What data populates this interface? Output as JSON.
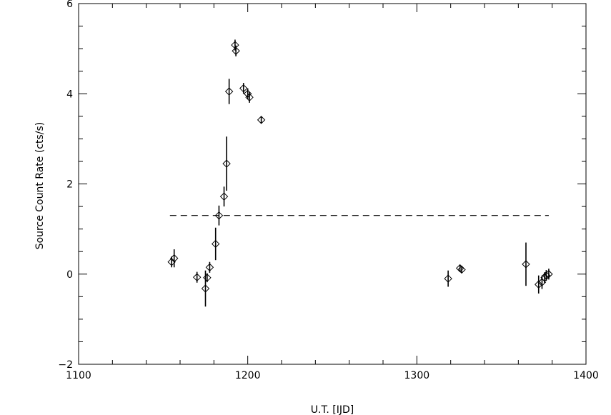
{
  "chart_data": {
    "type": "scatter",
    "title": "",
    "xlabel": "U.T. [IJD]",
    "ylabel": "Source Count Rate (cts/s)",
    "xlim": [
      1100,
      1400
    ],
    "ylim": [
      -2,
      6
    ],
    "x_ticks": [
      1100,
      1200,
      1300,
      1400
    ],
    "x_tick_labels": [
      "1100",
      "1200",
      "1300",
      "1400"
    ],
    "y_ticks": [
      -2,
      0,
      2,
      4,
      6
    ],
    "y_tick_labels": [
      "−2",
      "0",
      "2",
      "4",
      "6"
    ],
    "grid": false,
    "marker": "diamond",
    "points": [
      {
        "x": 1155,
        "y": 0.27,
        "err": 0.12
      },
      {
        "x": 1156.5,
        "y": 0.35,
        "err": 0.2
      },
      {
        "x": 1170,
        "y": -0.07,
        "err": 0.12
      },
      {
        "x": 1175,
        "y": -0.32,
        "err": 0.4
      },
      {
        "x": 1176,
        "y": -0.08,
        "err": 0.1
      },
      {
        "x": 1177.5,
        "y": 0.15,
        "err": 0.12
      },
      {
        "x": 1181,
        "y": 0.67,
        "err": 0.36
      },
      {
        "x": 1183,
        "y": 1.3,
        "err": 0.22
      },
      {
        "x": 1186,
        "y": 1.72,
        "err": 0.22
      },
      {
        "x": 1187.5,
        "y": 2.45,
        "err": 0.6
      },
      {
        "x": 1189,
        "y": 4.05,
        "err": 0.28
      },
      {
        "x": 1192.5,
        "y": 5.08,
        "err": 0.12
      },
      {
        "x": 1193,
        "y": 4.95,
        "err": 0.12
      },
      {
        "x": 1197.5,
        "y": 4.12,
        "err": 0.12
      },
      {
        "x": 1200,
        "y": 4.0,
        "err": 0.12
      },
      {
        "x": 1201,
        "y": 3.92,
        "err": 0.12
      },
      {
        "x": 1208,
        "y": 3.42,
        "err": 0.08
      },
      {
        "x": 1318.5,
        "y": -0.1,
        "err": 0.18
      },
      {
        "x": 1325.5,
        "y": 0.13,
        "err": 0.08
      },
      {
        "x": 1326.5,
        "y": 0.1,
        "err": 0.08
      },
      {
        "x": 1364.5,
        "y": 0.22,
        "err": 0.48
      },
      {
        "x": 1372,
        "y": -0.23,
        "err": 0.2
      },
      {
        "x": 1374,
        "y": -0.18,
        "err": 0.15
      },
      {
        "x": 1375.5,
        "y": -0.08,
        "err": 0.12
      },
      {
        "x": 1376.5,
        "y": -0.03,
        "err": 0.12
      },
      {
        "x": 1378,
        "y": 0.0,
        "err": 0.12
      }
    ],
    "reference_line": {
      "y": 1.3,
      "x_start": 1154,
      "x_end": 1378,
      "style": "dashed"
    }
  }
}
